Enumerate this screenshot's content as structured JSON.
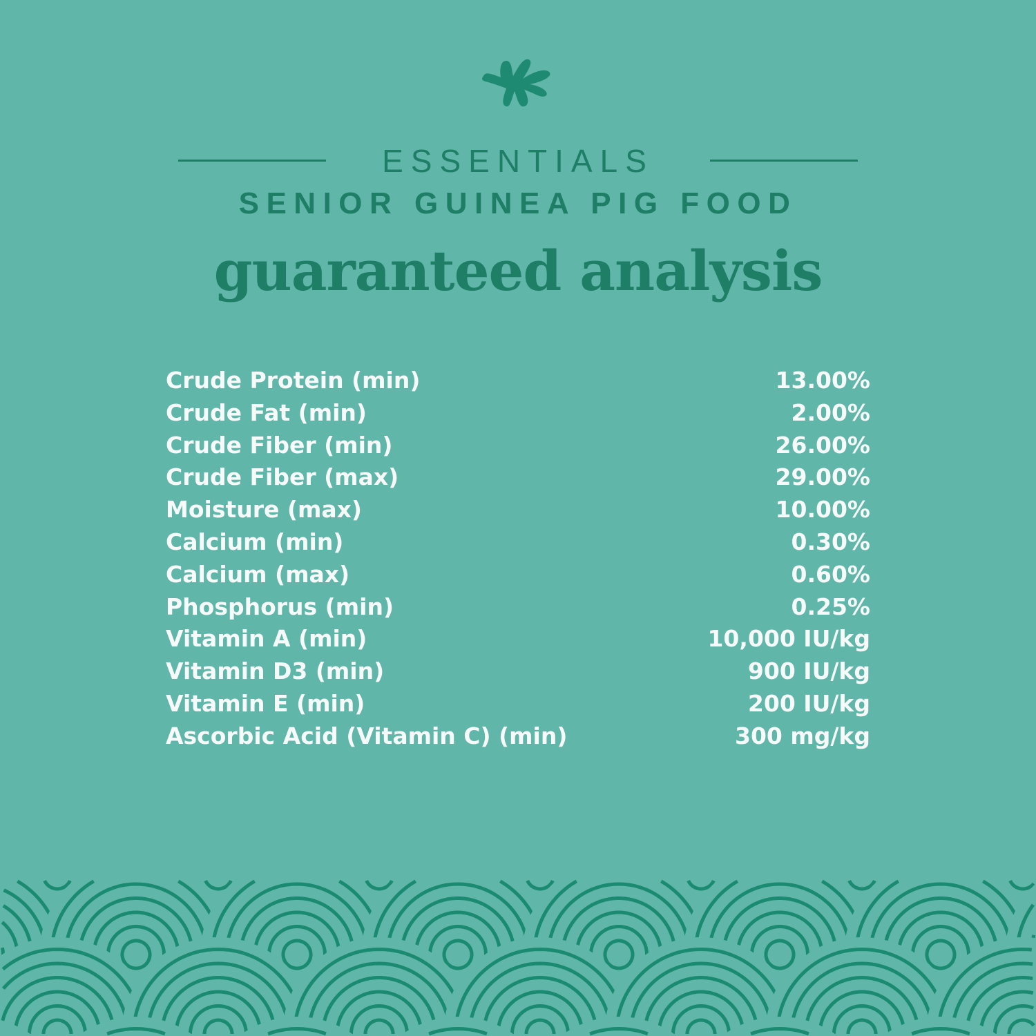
{
  "header": {
    "logo_icon": "leaf-icon",
    "brand": "ESSENTIALS",
    "subtitle": "SENIOR GUINEA PIG FOOD",
    "title": "guaranteed analysis"
  },
  "analysis": [
    {
      "label": "Crude Protein (min)",
      "value": "13.00%"
    },
    {
      "label": "Crude Fat (min)",
      "value": "2.00%"
    },
    {
      "label": "Crude Fiber (min)",
      "value": "26.00%"
    },
    {
      "label": "Crude Fiber (max)",
      "value": "29.00%"
    },
    {
      "label": "Moisture (max)",
      "value": "10.00%"
    },
    {
      "label": "Calcium (min)",
      "value": "0.30%"
    },
    {
      "label": "Calcium (max)",
      "value": "0.60%"
    },
    {
      "label": "Phosphorus (min)",
      "value": "0.25%"
    },
    {
      "label": "Vitamin A (min)",
      "value": "10,000 IU/kg"
    },
    {
      "label": "Vitamin D3 (min)",
      "value": "900 IU/kg"
    },
    {
      "label": "Vitamin E (min)",
      "value": "200 IU/kg"
    },
    {
      "label": "Ascorbic Acid (Vitamin C) (min)",
      "value": "300 mg/kg"
    }
  ],
  "colors": {
    "background": "#5fb6a9",
    "accent": "#1f7e66",
    "pattern": "#1a8a70",
    "text": "#f6faf8"
  }
}
